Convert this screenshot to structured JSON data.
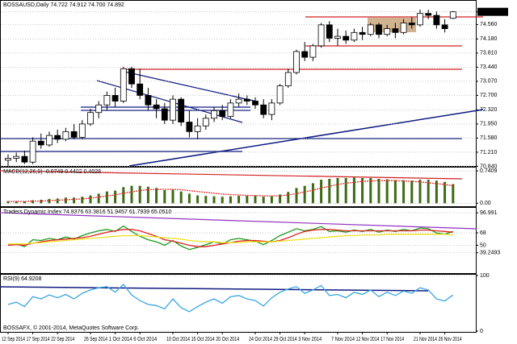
{
  "chart_data": [
    {
      "type": "candlestick",
      "title": "BOSSAUSD,Daily 74.722 74.912 74.700 74.892",
      "categories": [
        "12 Sep 2014",
        null,
        null,
        "17 Sep 2014",
        null,
        null,
        "22 Sep 2014",
        null,
        null,
        null,
        "26 Sep 2014",
        null,
        null,
        "1 Oct 2014",
        null,
        null,
        "6 Oct 2014",
        null,
        null,
        null,
        "10 Oct 2014",
        null,
        null,
        "15 Oct 2014",
        null,
        null,
        "20 Oct 2014",
        null,
        null,
        null,
        "24 Oct 2014",
        null,
        null,
        "29 Oct 2014",
        null,
        null,
        "3 Nov 2014",
        null,
        null,
        null,
        "7 Nov 2014",
        null,
        null,
        "12 Nov 2014",
        null,
        null,
        "17 Nov 2014",
        null,
        null,
        null,
        "21 Nov 2014",
        null,
        null,
        "26 Nov 2014",
        null
      ],
      "open": [
        71.0,
        71.05,
        71.1,
        70.95,
        71.5,
        71.4,
        71.65,
        71.55,
        71.75,
        71.6,
        71.95,
        72.25,
        72.45,
        72.7,
        72.55,
        73.4,
        73.0,
        72.7,
        72.45,
        72.35,
        72.05,
        72.6,
        72.0,
        71.75,
        71.9,
        72.1,
        72.3,
        72.15,
        72.5,
        72.6,
        72.55,
        72.45,
        72.2,
        72.5,
        72.95,
        73.3,
        73.85,
        73.7,
        74.0,
        74.55,
        74.2,
        74.25,
        74.15,
        74.35,
        74.3,
        74.55,
        74.3,
        74.45,
        74.35,
        74.6,
        74.55,
        74.85,
        74.8,
        74.55,
        74.722
      ],
      "high": [
        71.15,
        71.2,
        71.25,
        71.6,
        71.7,
        71.75,
        71.8,
        71.85,
        71.95,
        72.05,
        72.35,
        72.55,
        72.8,
        72.9,
        73.45,
        73.45,
        73.4,
        72.9,
        72.6,
        72.5,
        72.7,
        72.65,
        72.3,
        72.1,
        72.2,
        72.4,
        72.45,
        72.6,
        72.75,
        72.7,
        72.65,
        72.6,
        72.6,
        73.0,
        73.4,
        73.9,
        74.1,
        74.05,
        74.6,
        74.65,
        74.45,
        74.4,
        74.45,
        74.5,
        74.6,
        74.6,
        74.55,
        74.6,
        74.7,
        74.75,
        74.95,
        74.95,
        74.9,
        74.7,
        74.912
      ],
      "low": [
        70.85,
        70.95,
        70.9,
        70.9,
        71.3,
        71.35,
        71.45,
        71.5,
        71.55,
        71.55,
        71.9,
        72.1,
        72.3,
        72.4,
        72.5,
        72.9,
        72.6,
        72.3,
        72.1,
        71.95,
        71.95,
        71.9,
        71.6,
        71.55,
        71.8,
        72.0,
        72.05,
        72.1,
        72.4,
        72.45,
        72.35,
        72.1,
        72.05,
        72.45,
        72.9,
        73.25,
        73.6,
        73.6,
        73.95,
        74.1,
        74.0,
        74.05,
        74.1,
        74.15,
        74.25,
        74.2,
        74.25,
        74.2,
        74.3,
        74.45,
        74.5,
        74.7,
        74.45,
        74.35,
        74.7
      ],
      "close": [
        71.05,
        71.1,
        70.95,
        71.5,
        71.4,
        71.65,
        71.55,
        71.75,
        71.6,
        71.95,
        72.25,
        72.45,
        72.7,
        72.55,
        73.4,
        73.0,
        72.7,
        72.45,
        72.35,
        72.05,
        72.6,
        72.0,
        71.75,
        71.9,
        72.1,
        72.3,
        72.15,
        72.5,
        72.6,
        72.55,
        72.45,
        72.2,
        72.5,
        72.95,
        73.3,
        73.85,
        73.7,
        74.0,
        74.55,
        74.2,
        74.25,
        74.15,
        74.35,
        74.3,
        74.55,
        74.3,
        74.45,
        74.35,
        74.6,
        74.55,
        74.85,
        74.8,
        74.55,
        74.45,
        74.892
      ],
      "ylim": [
        70.87,
        75.16
      ],
      "yticks": [
        74.892,
        {
          "value": 74.56,
          "label": "74.560"
        },
        {
          "value": 74.18,
          "label": "74.180"
        },
        {
          "value": 73.81,
          "label": "73.810"
        },
        {
          "value": 73.44,
          "label": "73.440"
        },
        {
          "value": 73.07,
          "label": "73.070"
        },
        {
          "value": 72.7,
          "label": "72.700"
        },
        {
          "value": 72.32,
          "label": "72.320"
        },
        {
          "value": 71.95,
          "label": "71.950"
        },
        {
          "value": 71.58,
          "label": "71.580"
        },
        {
          "value": 71.21,
          "label": "71.210"
        },
        {
          "value": 70.84,
          "label": "70.840"
        }
      ],
      "grid": true
    },
    {
      "type": "macd",
      "title": "MACD(12,26,9) -0.0749 0.4402 0.4028",
      "series": [
        {
          "type": "bar",
          "color": "#3d6b14",
          "values": [
            0.05,
            0.05,
            0.04,
            0.07,
            0.08,
            0.1,
            0.11,
            0.13,
            0.13,
            0.15,
            0.18,
            0.22,
            0.27,
            0.29,
            0.37,
            0.4,
            0.4,
            0.38,
            0.35,
            0.3,
            0.31,
            0.27,
            0.22,
            0.18,
            0.17,
            0.16,
            0.15,
            0.16,
            0.17,
            0.17,
            0.17,
            0.15,
            0.16,
            0.2,
            0.26,
            0.35,
            0.4,
            0.46,
            0.54,
            0.56,
            0.58,
            0.58,
            0.59,
            0.58,
            0.58,
            0.56,
            0.55,
            0.53,
            0.53,
            0.52,
            0.54,
            0.54,
            0.52,
            0.49,
            0.4402
          ]
        },
        {
          "type": "line",
          "color": "#e03030",
          "values": [
            0.04,
            0.04,
            0.04,
            0.05,
            0.05,
            0.06,
            0.07,
            0.08,
            0.09,
            0.1,
            0.12,
            0.14,
            0.17,
            0.19,
            0.23,
            0.26,
            0.29,
            0.31,
            0.32,
            0.32,
            0.32,
            0.31,
            0.29,
            0.27,
            0.25,
            0.23,
            0.21,
            0.2,
            0.19,
            0.18,
            0.18,
            0.17,
            0.17,
            0.17,
            0.19,
            0.22,
            0.26,
            0.3,
            0.35,
            0.39,
            0.43,
            0.46,
            0.48,
            0.5,
            0.51,
            0.52,
            0.52,
            0.52,
            0.51,
            0.5,
            0.49,
            0.47,
            0.45,
            0.43,
            0.4028
          ]
        }
      ],
      "ylim": [
        -0.05,
        0.8
      ],
      "yticks": [
        0.7409,
        {
          "value": 0,
          "label": "0.00"
        }
      ],
      "grid": true
    },
    {
      "type": "line",
      "title": "Traders Dynamic Index 74.8376 63.3816 51.9457 61.7939 65.0510",
      "series": [
        {
          "color": "#1a9a1a",
          "values": [
            50,
            52,
            48,
            58,
            57,
            60,
            58,
            62,
            59,
            64,
            68,
            71,
            73,
            70,
            78,
            70,
            63,
            58,
            55,
            50,
            57,
            49,
            44,
            47,
            51,
            55,
            52,
            58,
            60,
            58,
            56,
            51,
            57,
            64,
            69,
            74,
            71,
            73,
            77,
            70,
            71,
            69,
            72,
            70,
            73,
            69,
            72,
            70,
            73,
            71,
            75,
            74,
            68,
            66,
            70
          ]
        },
        {
          "color": "#e02020",
          "values": [
            50,
            51,
            50,
            53,
            55,
            57,
            58,
            59,
            60,
            61,
            63,
            66,
            69,
            71,
            73,
            73,
            71,
            67,
            63,
            58,
            56,
            53,
            50,
            48,
            48,
            50,
            52,
            54,
            56,
            57,
            57,
            56,
            55,
            57,
            61,
            66,
            70,
            72,
            73,
            73,
            72,
            71,
            71,
            71,
            71,
            71,
            71,
            71,
            71,
            71,
            72,
            72,
            71,
            70,
            69
          ]
        },
        {
          "color": "#f0e020",
          "values": [
            52,
            52,
            52,
            53,
            54,
            55,
            56,
            57,
            58,
            59,
            60,
            61,
            62,
            63,
            64,
            64,
            64,
            63,
            62,
            61,
            60,
            59,
            57,
            56,
            55,
            55,
            54,
            54,
            54,
            55,
            55,
            55,
            55,
            56,
            57,
            58,
            59,
            60,
            61,
            62,
            63,
            64,
            64,
            65,
            65,
            65,
            66,
            66,
            66,
            66,
            66,
            66,
            66,
            66,
            65
          ]
        }
      ],
      "ylim": [
        11,
        103
      ],
      "yticks": [
        96.991,
        68,
        50,
        39.2493
      ],
      "grid": true
    },
    {
      "type": "line",
      "title": "RSI(9) 64.9208",
      "annotation": "BOSSAFX, © 2001-2014, MetaQuotes Software Corp.",
      "series": [
        {
          "color": "#3aa6e0",
          "values": [
            48,
            52,
            44,
            62,
            58,
            65,
            60,
            66,
            58,
            68,
            74,
            78,
            80,
            70,
            84,
            65,
            55,
            48,
            46,
            40,
            58,
            42,
            35,
            44,
            52,
            58,
            50,
            62,
            64,
            58,
            55,
            45,
            60,
            70,
            76,
            80,
            68,
            74,
            82,
            64,
            66,
            60,
            70,
            66,
            74,
            62,
            70,
            64,
            72,
            68,
            78,
            74,
            58,
            54,
            64.9208
          ]
        }
      ],
      "ylim": [
        0,
        100
      ],
      "yticks": [
        100,
        0
      ],
      "grid": true
    }
  ]
}
